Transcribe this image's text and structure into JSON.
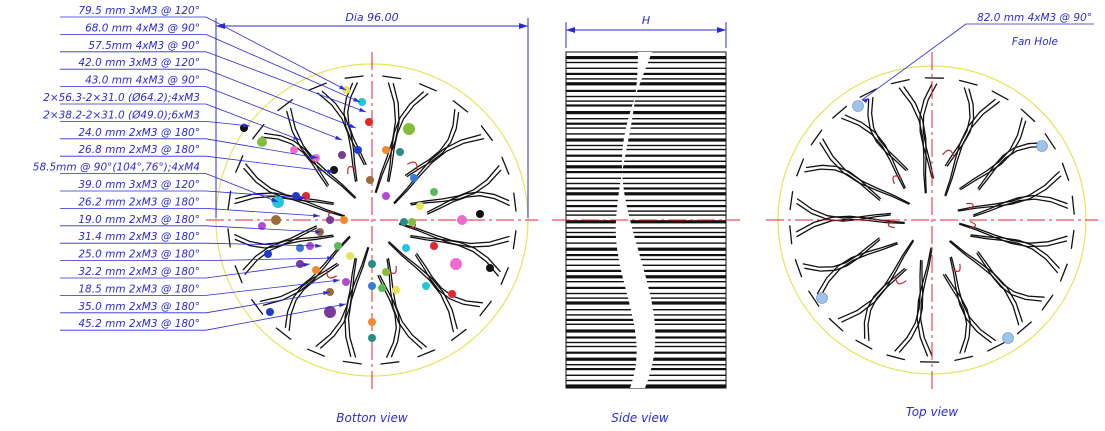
{
  "callouts": [
    "79.5 mm 3xM3 @ 120°",
    "68.0 mm 4xM3 @ 90°",
    "57.5mm 4xM3 @ 90°",
    "42.0 mm 3xM3 @ 120°",
    "43.0 mm 4xM3 @ 90°",
    "2×56.3-2×31.0 (Ø64.2);4xM3",
    "2×38.2-2×31.0 (Ø49.0);6xM3",
    "24.0 mm 2xM3 @ 180°",
    "26.8 mm 2xM3 @ 180°",
    "58.5mm @ 90°(104°,76°);4xM4",
    "39.0 mm 3xM3 @ 120°",
    "26.2 mm 2xM3 @ 180°",
    "19.0 mm 2xM3 @ 180°",
    "31.4 mm 2xM3 @ 180°",
    "25.0 mm 2xM3 @ 180°",
    "32.2 mm 2xM3 @ 180°",
    "18.5 mm 2xM3 @ 180°",
    "35.0 mm 2xM3 @ 180°",
    "45.2 mm 2xM3 @ 180°"
  ],
  "dimensions": {
    "diameter": "Dia 96.00",
    "height": "H"
  },
  "top_view_callout": {
    "line1": "82.0 mm 4xM3 @ 90°",
    "line2": "Fan Hole"
  },
  "view_labels": {
    "bottom": "Botton view",
    "side": "Side view",
    "top": "Top view"
  },
  "colors": {
    "annotation": "#2b2bd6",
    "fin_outline": "#111111",
    "center_line": "#e0262e",
    "circle_outline": "#e8e35a",
    "hole_palette": [
      "#e8e35a",
      "#22c7d6",
      "#e0262e",
      "#1f3cc9",
      "#7a3b98",
      "#f08a2a",
      "#2a8a8a",
      "#7fbf3a",
      "#f06ad0",
      "#111111",
      "#9c6b3a",
      "#b34bd0",
      "#3a7bd5",
      "#5db85d"
    ],
    "fan_hole": "#9fc4ea"
  }
}
